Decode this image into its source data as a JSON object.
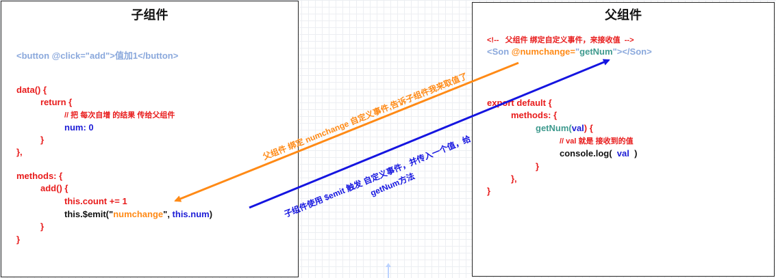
{
  "left": {
    "title": "子组件",
    "button_tag_open": "<button @click=\"add\">",
    "button_text": "值加1",
    "button_tag_close": "</button>",
    "data_open": "data() {",
    "return_open": "return {",
    "comment": "// 把 每次自增 的结果 传给父组件",
    "num_line": "num: 0",
    "brace_close": "}",
    "data_close": "},",
    "methods_open": "methods: {",
    "add_open": "add() {",
    "count_line": "this.count += 1",
    "emit_prefix": "this.$emit(\"",
    "emit_event": "numchange",
    "emit_mid": "\", ",
    "emit_arg": "this.num",
    "emit_suffix": ")",
    "add_close": "}",
    "methods_close": "}"
  },
  "right": {
    "title": "父组件",
    "html_comment": "<!--   父组件 绑定自定义事件，来接收值  -->",
    "son_open": "<Son ",
    "son_attr": "@numchange=",
    "son_quote_open": "\"",
    "son_handler": "getNum",
    "son_quote_close": "\"",
    "son_close": "></Son>",
    "export_line": "export default {",
    "methods_open": "methods: {",
    "getnum_name": "getNum(",
    "getnum_param": "val",
    "getnum_close": ") {",
    "val_comment": "// val 就是 接收到的值",
    "console_prefix": "console.log(  ",
    "console_arg": "val",
    "console_suffix": "  )",
    "brace_close": "}",
    "methods_close": "},",
    "export_close": "}"
  },
  "arrows": {
    "parent_to_child_label": "父组件 绑定 numchange 自定义事件,告诉子组件我来取值了",
    "child_to_parent_label_line1": "子组件使用 $emit 触发 自定义事件，并传入一个值，给",
    "child_to_parent_label_line2": "getNum方法",
    "parent_to_child_color": "#ff8a16",
    "child_to_parent_color": "#1515e0"
  }
}
